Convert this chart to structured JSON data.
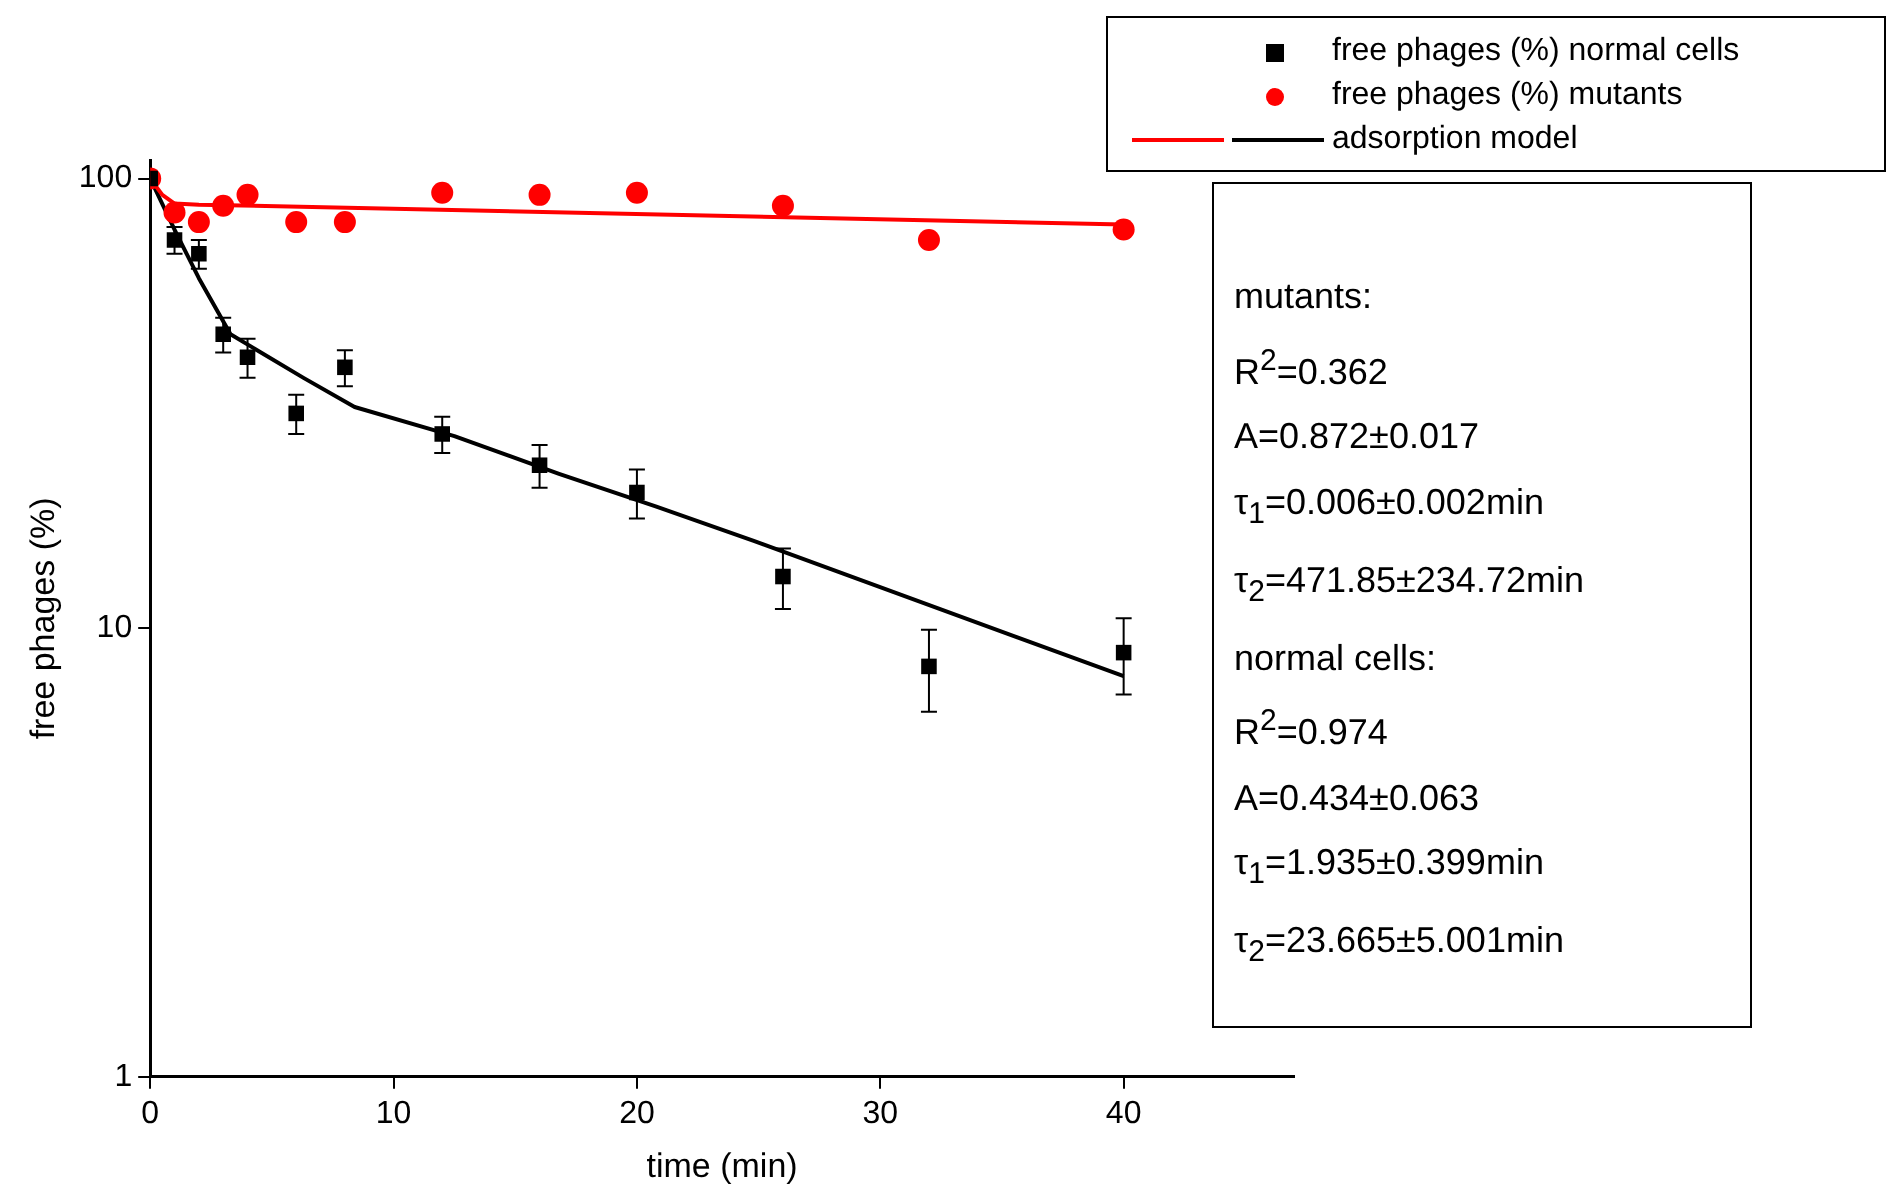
{
  "chart_data": {
    "type": "scatter",
    "xlabel": "time (min)",
    "ylabel": "free phages (%)",
    "log": "y",
    "xlim": [
      0,
      47
    ],
    "xticks": [
      0,
      10,
      20,
      30,
      40
    ],
    "ylim": [
      1,
      110
    ],
    "yticks": [
      1,
      10,
      100
    ],
    "grid": false,
    "legend": "top right",
    "series": [
      {
        "name": "free phages (%) normal cells",
        "type": "scatter",
        "marker": "square",
        "color": "#000000",
        "x": [
          0,
          1,
          2,
          3,
          4,
          6,
          8,
          12,
          16,
          20,
          26,
          32,
          40
        ],
        "values": [
          100,
          73,
          68,
          45,
          40,
          30,
          38,
          27,
          23,
          20,
          13,
          8.2,
          8.8
        ],
        "errors": [
          null,
          5,
          5,
          4,
          4,
          3,
          3.5,
          2.5,
          2.5,
          2.5,
          2,
          1.7,
          1.7
        ]
      },
      {
        "name": "free phages (%) mutants",
        "type": "scatter",
        "marker": "circle",
        "color": "#ff0000",
        "x": [
          0,
          1,
          2,
          3,
          4,
          6,
          8,
          12,
          16,
          20,
          26,
          32,
          40
        ],
        "values": [
          100,
          84,
          80,
          87,
          92,
          80,
          80,
          93,
          92,
          93,
          87,
          73,
          77
        ]
      },
      {
        "type": "line",
        "marker": "none",
        "color": "#ff0000",
        "x": [
          0,
          0.5,
          1,
          2,
          40
        ],
        "values": [
          100,
          92,
          88,
          87.5,
          79
        ]
      },
      {
        "name": "adsorption model",
        "type": "line",
        "marker": "none",
        "color": "#000000",
        "x": [
          0,
          1,
          2,
          3.3,
          6.3,
          8.4,
          12.5,
          16.8,
          20.8,
          24.8,
          40
        ],
        "values": [
          100,
          77,
          60,
          45,
          36,
          31,
          26.7,
          22,
          18.6,
          15.6,
          7.8
        ]
      }
    ],
    "annotations": [
      "mutants:",
      "R$^{2}$=0.362",
      "A=0.872±0.017",
      "τ$_{1}$=0.006±0.002min",
      "τ$_{2}$=471.85±234.72min",
      "normal cells:",
      "R$^{2}$=0.974",
      "A=0.434±0.063",
      "τ$_{1}$=1.935±0.399min",
      "τ$_{2}$=23.665±5.001min"
    ]
  }
}
